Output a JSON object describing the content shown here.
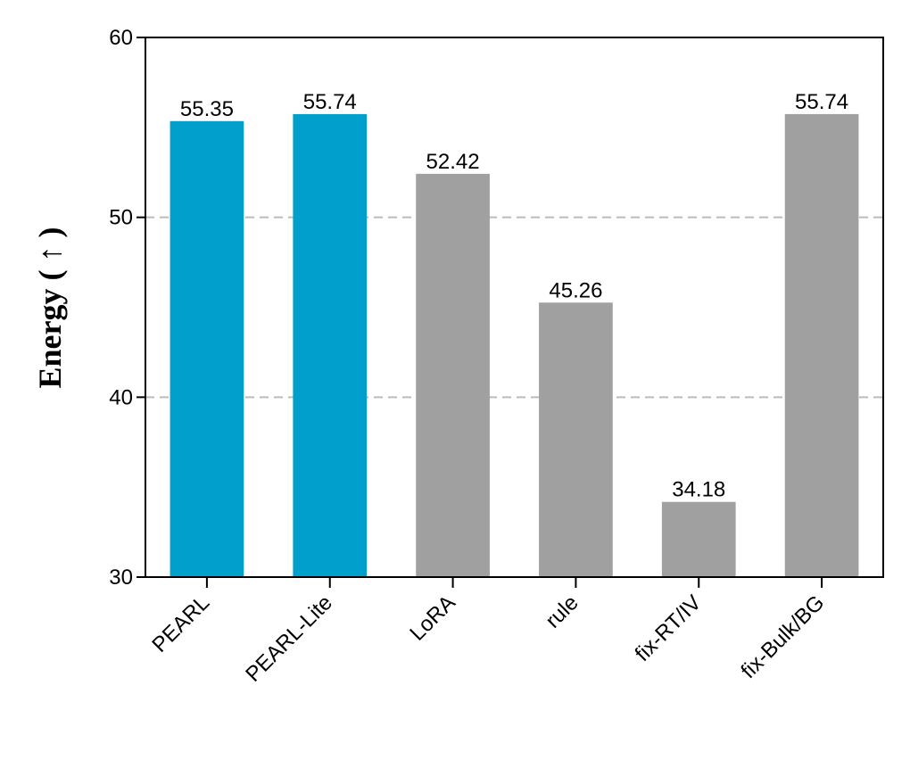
{
  "chart_data": {
    "type": "bar",
    "y_label": "Energy ( ↑ )",
    "categories": [
      "PEARL",
      "PEARL-Lite",
      "LoRA",
      "rule",
      "fix-RT/IV",
      "fix-Bulk/BG"
    ],
    "values": [
      55.35,
      55.74,
      52.42,
      45.26,
      34.18,
      55.74
    ],
    "colors": [
      "#009fcc",
      "#009fcc",
      "#a0a0a0",
      "#a0a0a0",
      "#a0a0a0",
      "#a0a0a0"
    ],
    "ylim": [
      30,
      60
    ],
    "yticks": [
      30,
      40,
      50,
      60
    ],
    "grid": true
  }
}
